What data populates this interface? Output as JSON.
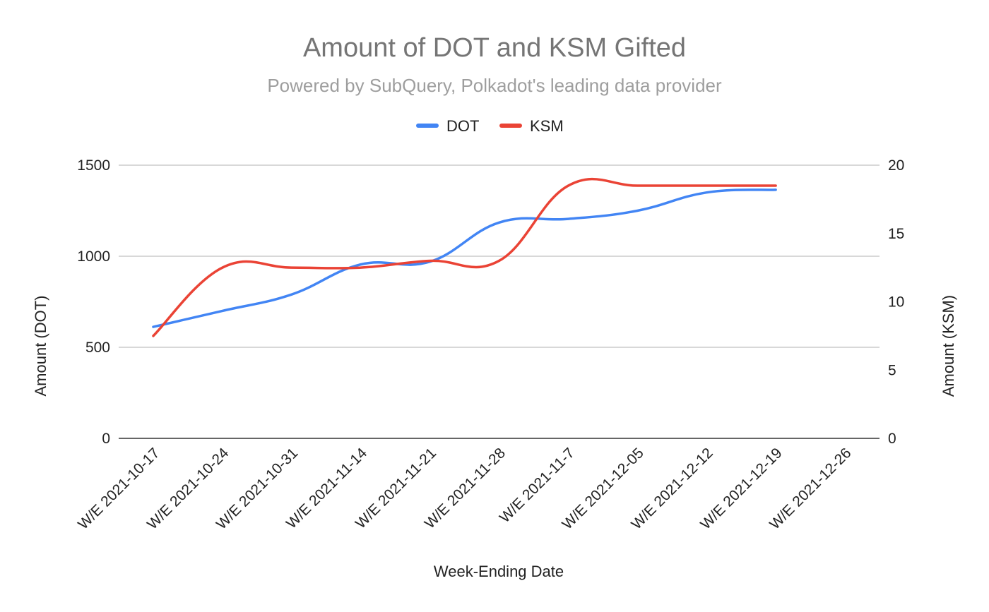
{
  "chart_data": {
    "type": "line",
    "title": "Amount of DOT and KSM Gifted",
    "subtitle": "Powered by SubQuery, Polkadot's leading data provider",
    "xlabel": "Week-Ending Date",
    "ylabel_left": "Amount (DOT)",
    "ylabel_right": "Amount (KSM)",
    "legend_position": "top-center",
    "grid": true,
    "categories": [
      "W/E 2021-10-17",
      "W/E 2021-10-24",
      "W/E 2021-10-31",
      "W/E 2021-11-14",
      "W/E 2021-11-21",
      "W/E 2021-11-28",
      "W/E 2021-11-7",
      "W/E 2021-12-05",
      "W/E 2021-12-12",
      "W/E 2021-12-19",
      "W/E 2021-12-26"
    ],
    "y_left": {
      "min": 0,
      "max": 1500,
      "ticks": [
        "0",
        "500",
        "1000",
        "1500"
      ]
    },
    "y_right": {
      "min": 0,
      "max": 20,
      "ticks": [
        "0",
        "5",
        "10",
        "15",
        "20"
      ]
    },
    "series": [
      {
        "name": "DOT",
        "axis": "left",
        "color": "#4285f4",
        "values": [
          612,
          700,
          790,
          955,
          970,
          1185,
          1205,
          1250,
          1350,
          1365,
          null
        ]
      },
      {
        "name": "KSM",
        "axis": "right",
        "color": "#ea4335",
        "values": [
          7.5,
          12.5,
          12.5,
          12.5,
          13.0,
          13.0,
          18.5,
          18.5,
          18.5,
          18.5,
          null
        ]
      }
    ]
  }
}
